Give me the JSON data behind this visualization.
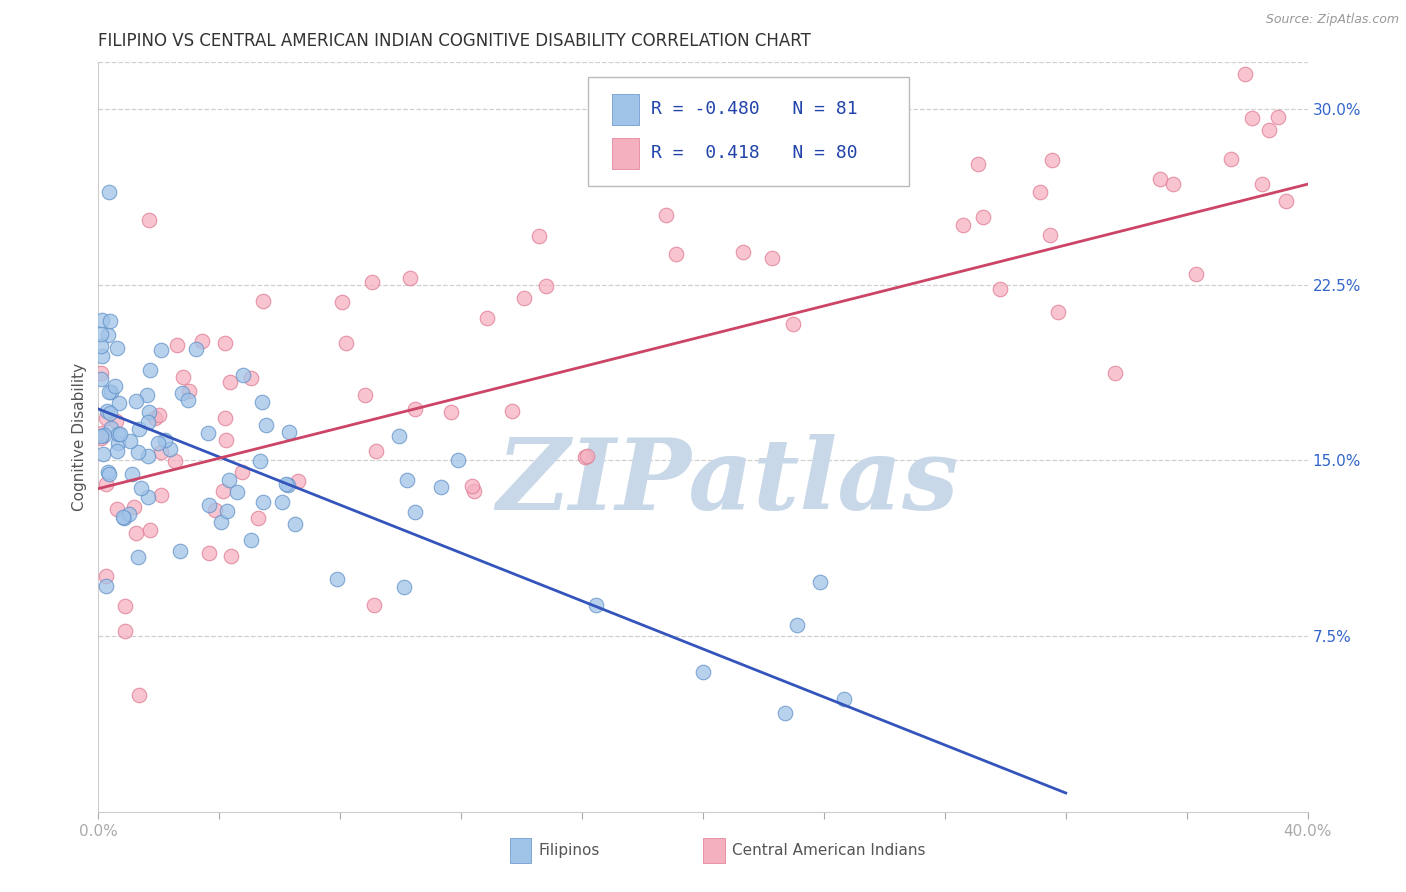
{
  "title": "FILIPINO VS CENTRAL AMERICAN INDIAN COGNITIVE DISABILITY CORRELATION CHART",
  "source": "Source: ZipAtlas.com",
  "ylabel": "Cognitive Disability",
  "xlim": [
    0.0,
    0.4
  ],
  "ylim": [
    0.0,
    0.32
  ],
  "xtick_positions": [
    0.0,
    0.04,
    0.08,
    0.12,
    0.16,
    0.2,
    0.24,
    0.28,
    0.32,
    0.36,
    0.4
  ],
  "xtick_labels": [
    "0.0%",
    "",
    "",
    "",
    "",
    "",
    "",
    "",
    "",
    "",
    "40.0%"
  ],
  "ytick_positions": [
    0.0,
    0.075,
    0.15,
    0.225,
    0.3
  ],
  "ytick_labels": [
    "",
    "7.5%",
    "15.0%",
    "22.5%",
    "30.0%"
  ],
  "watermark": "ZIPatlas",
  "watermark_color": "#c8d8e8",
  "blue_color": "#a0c4e8",
  "blue_edge": "#6090c8",
  "pink_color": "#f5b0c0",
  "pink_edge": "#e07890",
  "blue_line_color": "#3355bb",
  "pink_line_color": "#cc4466",
  "blue_R": -0.48,
  "blue_N": 81,
  "pink_R": 0.418,
  "pink_N": 80,
  "legend_label_blue": "Filipinos",
  "legend_label_pink": "Central American Indians",
  "blue_line": [
    0.0,
    0.172,
    0.32,
    0.008
  ],
  "pink_line": [
    0.0,
    0.138,
    0.4,
    0.268
  ],
  "blue_seed": 42,
  "pink_seed": 99
}
